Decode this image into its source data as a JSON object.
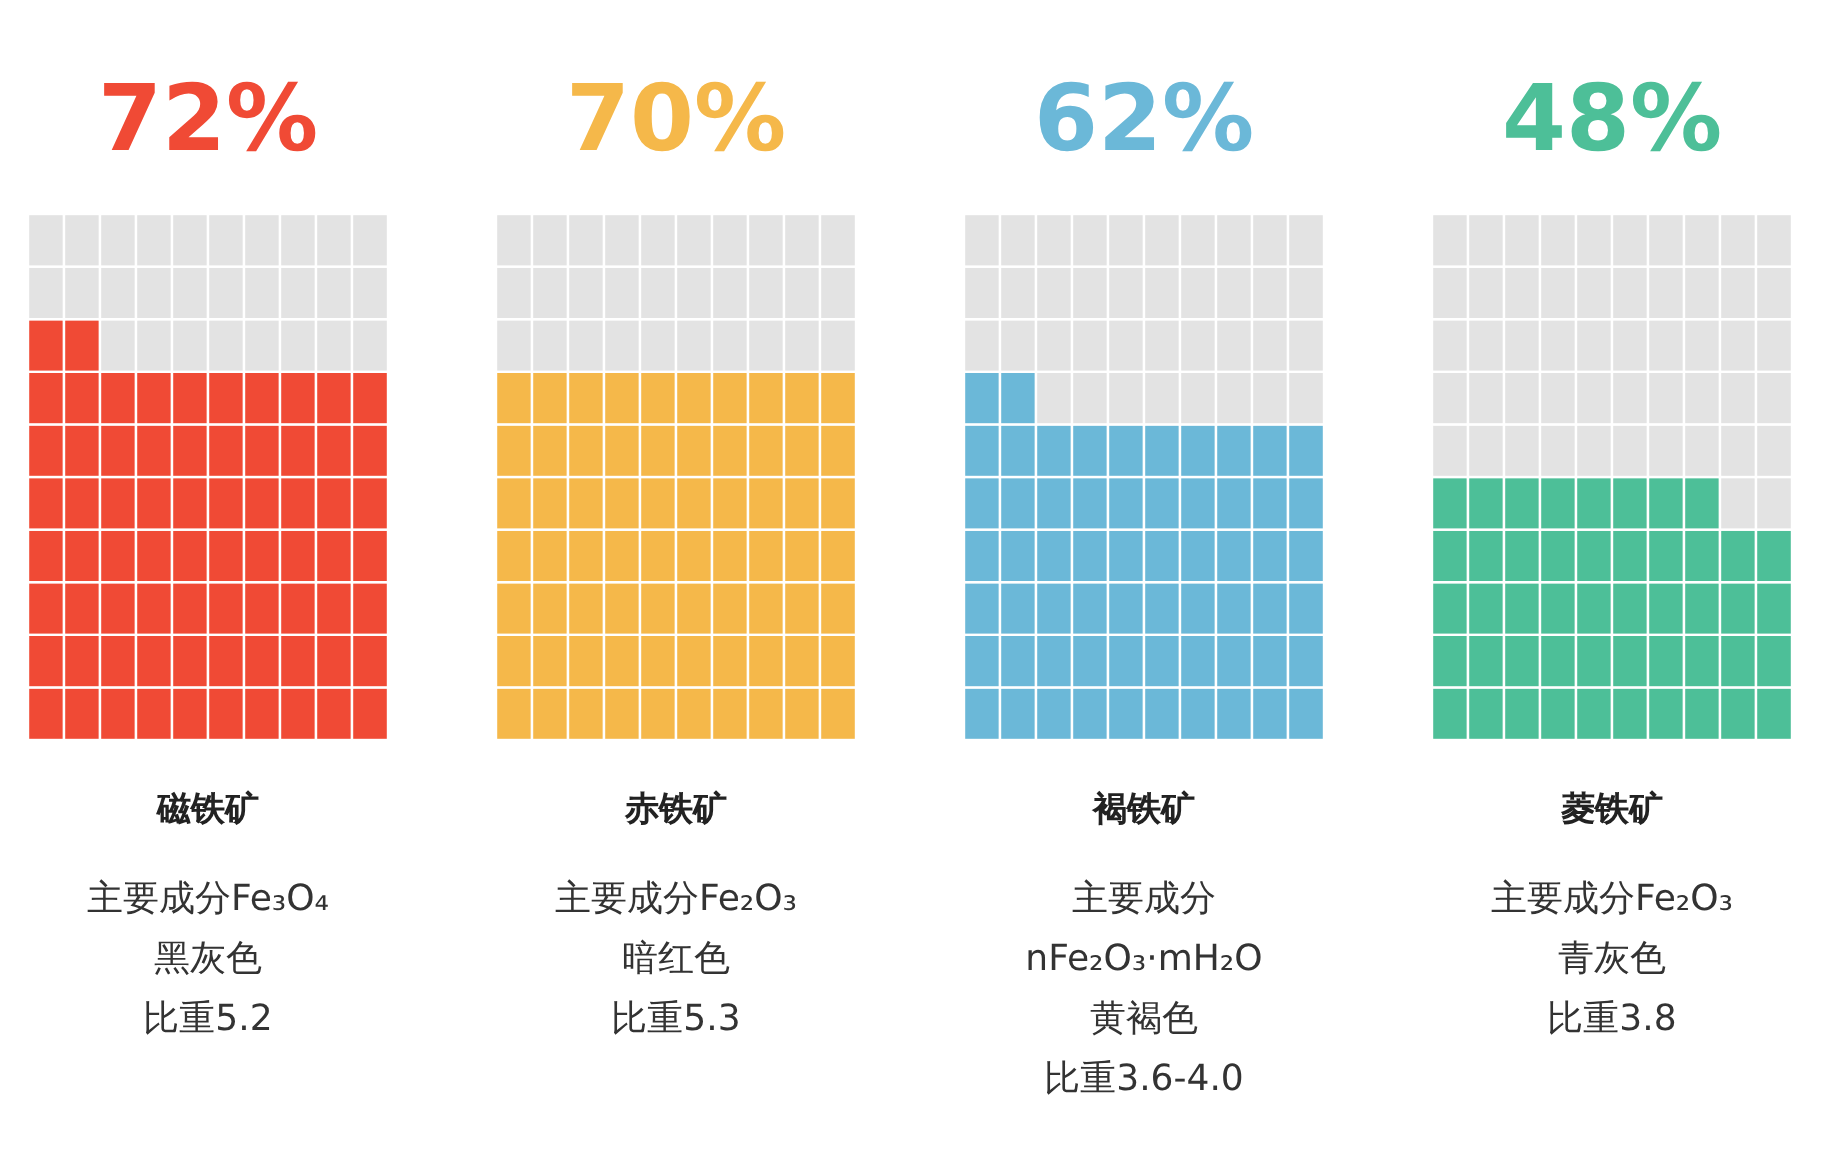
{
  "chart_data": [
    {
      "type": "other",
      "categories": [
        "磁铁矿"
      ],
      "values": [
        72
      ],
      "value_labels": [
        "72%"
      ],
      "color": "#f04a35",
      "annotations": [
        "主要成分Fe₃O₄",
        "黑灰色",
        "比重5.2"
      ]
    },
    {
      "type": "other",
      "categories": [
        "赤铁矿"
      ],
      "values": [
        70
      ],
      "value_labels": [
        "70%"
      ],
      "color": "#f5b84a",
      "annotations": [
        "主要成分Fe₂O₃",
        "暗红色",
        "比重5.3"
      ]
    },
    {
      "type": "other",
      "categories": [
        "褐铁矿"
      ],
      "values": [
        62
      ],
      "value_labels": [
        "62%"
      ],
      "color": "#6bb8d8",
      "annotations": [
        "主要成分",
        "nFe₂O₃·mH₂O",
        "黄褐色",
        "比重3.6-4.0"
      ]
    },
    {
      "type": "other",
      "categories": [
        "菱铁矿"
      ],
      "values": [
        48
      ],
      "value_labels": [
        "48%"
      ],
      "color": "#4dbf98",
      "annotations": [
        "主要成分Fe₂O₃",
        "青灰色",
        "比重3.8"
      ]
    }
  ]
}
